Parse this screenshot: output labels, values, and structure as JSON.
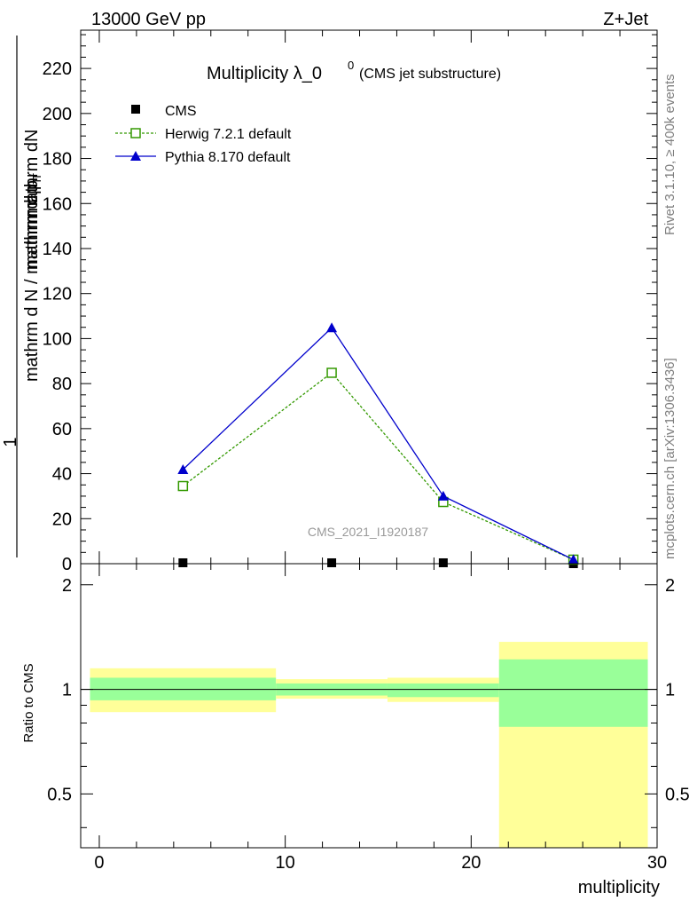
{
  "header": {
    "energy_label": "13000 GeV pp",
    "process_label": "Z+Jet"
  },
  "side": {
    "rivet_label": "Rivet 3.1.10, ≥ 400k events",
    "mcplots_label": "mcplots.cern.ch [arXiv:1306.3436]"
  },
  "watermark": "CMS_2021_I1920187",
  "chart_data": [
    {
      "type": "line",
      "title_main": "Multiplicity λ_0",
      "title_sup": "0",
      "title_sub": "(CMS jet substructure)",
      "ylabel_top": "1",
      "ylabel_num": "mathrm dN",
      "ylabel_den": "mathrm d N / mathrm d p",
      "ylabel_den2": "T",
      "ylabel_den3": "mathrm d p",
      "ylabel_den4": "T",
      "ylabel_den5": "mathrm d lambda",
      "ylabel_den6": "mathrm d",
      "xlim": [
        -1,
        30
      ],
      "ylim": [
        0,
        237
      ],
      "yticks": [
        0,
        20,
        40,
        60,
        80,
        100,
        120,
        140,
        160,
        180,
        200,
        220
      ],
      "legend": [
        {
          "name": "CMS",
          "color": "#000000"
        },
        {
          "name": "Herwig 7.2.1 default",
          "color": "#339900"
        },
        {
          "name": "Pythia 8.170 default",
          "color": "#0000cc"
        }
      ],
      "series": [
        {
          "name": "CMS",
          "x": [
            4.5,
            12.5,
            18.5,
            25.5
          ],
          "values": [
            0.4,
            0.4,
            0.4,
            0.0
          ],
          "color": "#000000",
          "marker": "square-filled"
        },
        {
          "name": "Herwig 7.2.1 default",
          "x": [
            4.5,
            12.5,
            18.5,
            25.5
          ],
          "values": [
            34.5,
            84.8,
            27.4,
            1.8
          ],
          "color": "#339900",
          "marker": "square-open",
          "dashed": true
        },
        {
          "name": "Pythia 8.170 default",
          "x": [
            4.5,
            12.5,
            18.5,
            25.5
          ],
          "values": [
            41.8,
            104.8,
            30.0,
            1.8
          ],
          "color": "#0000cc",
          "marker": "triangle"
        }
      ]
    },
    {
      "type": "area",
      "ylabel": "Ratio to CMS",
      "xlabel": "multiplicity",
      "xlim": [
        -1,
        30
      ],
      "ylim": [
        0.35,
        2.3
      ],
      "yticks": [
        0.5,
        1,
        2
      ],
      "yticklabels": [
        "0.5",
        "1",
        "2"
      ],
      "xticks": [
        0,
        10,
        20,
        30
      ],
      "xticklabels": [
        "0",
        "10",
        "20",
        "30"
      ],
      "bins": [
        {
          "lo": -0.5,
          "hi": 9.5,
          "inner": [
            0.93,
            1.08
          ],
          "outer": [
            0.86,
            1.15
          ]
        },
        {
          "lo": 9.5,
          "hi": 15.5,
          "inner": [
            0.96,
            1.04
          ],
          "outer": [
            0.94,
            1.07
          ]
        },
        {
          "lo": 15.5,
          "hi": 21.5,
          "inner": [
            0.95,
            1.04
          ],
          "outer": [
            0.92,
            1.08
          ]
        },
        {
          "lo": 21.5,
          "hi": 29.5,
          "inner": [
            0.78,
            1.22
          ],
          "outer": [
            0.35,
            1.37
          ]
        }
      ]
    }
  ]
}
